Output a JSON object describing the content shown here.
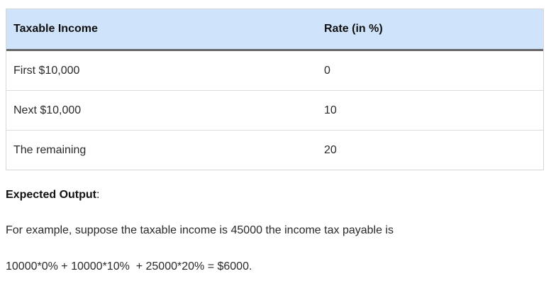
{
  "table": {
    "headers": [
      "Taxable Income",
      "Rate (in %)"
    ],
    "rows": [
      [
        "First $10,000",
        "0"
      ],
      [
        "Next $10,000",
        "10"
      ],
      [
        "The remaining",
        "20"
      ]
    ],
    "header_bg": "#cfe4fb"
  },
  "section": {
    "heading": "Expected Output",
    "heading_suffix": ":"
  },
  "paragraphs": {
    "example": "For example, suppose the taxable income is 45000 the income tax payable is",
    "formula": "10000*0% + 10000*10%  + 25000*20% = $6000."
  }
}
